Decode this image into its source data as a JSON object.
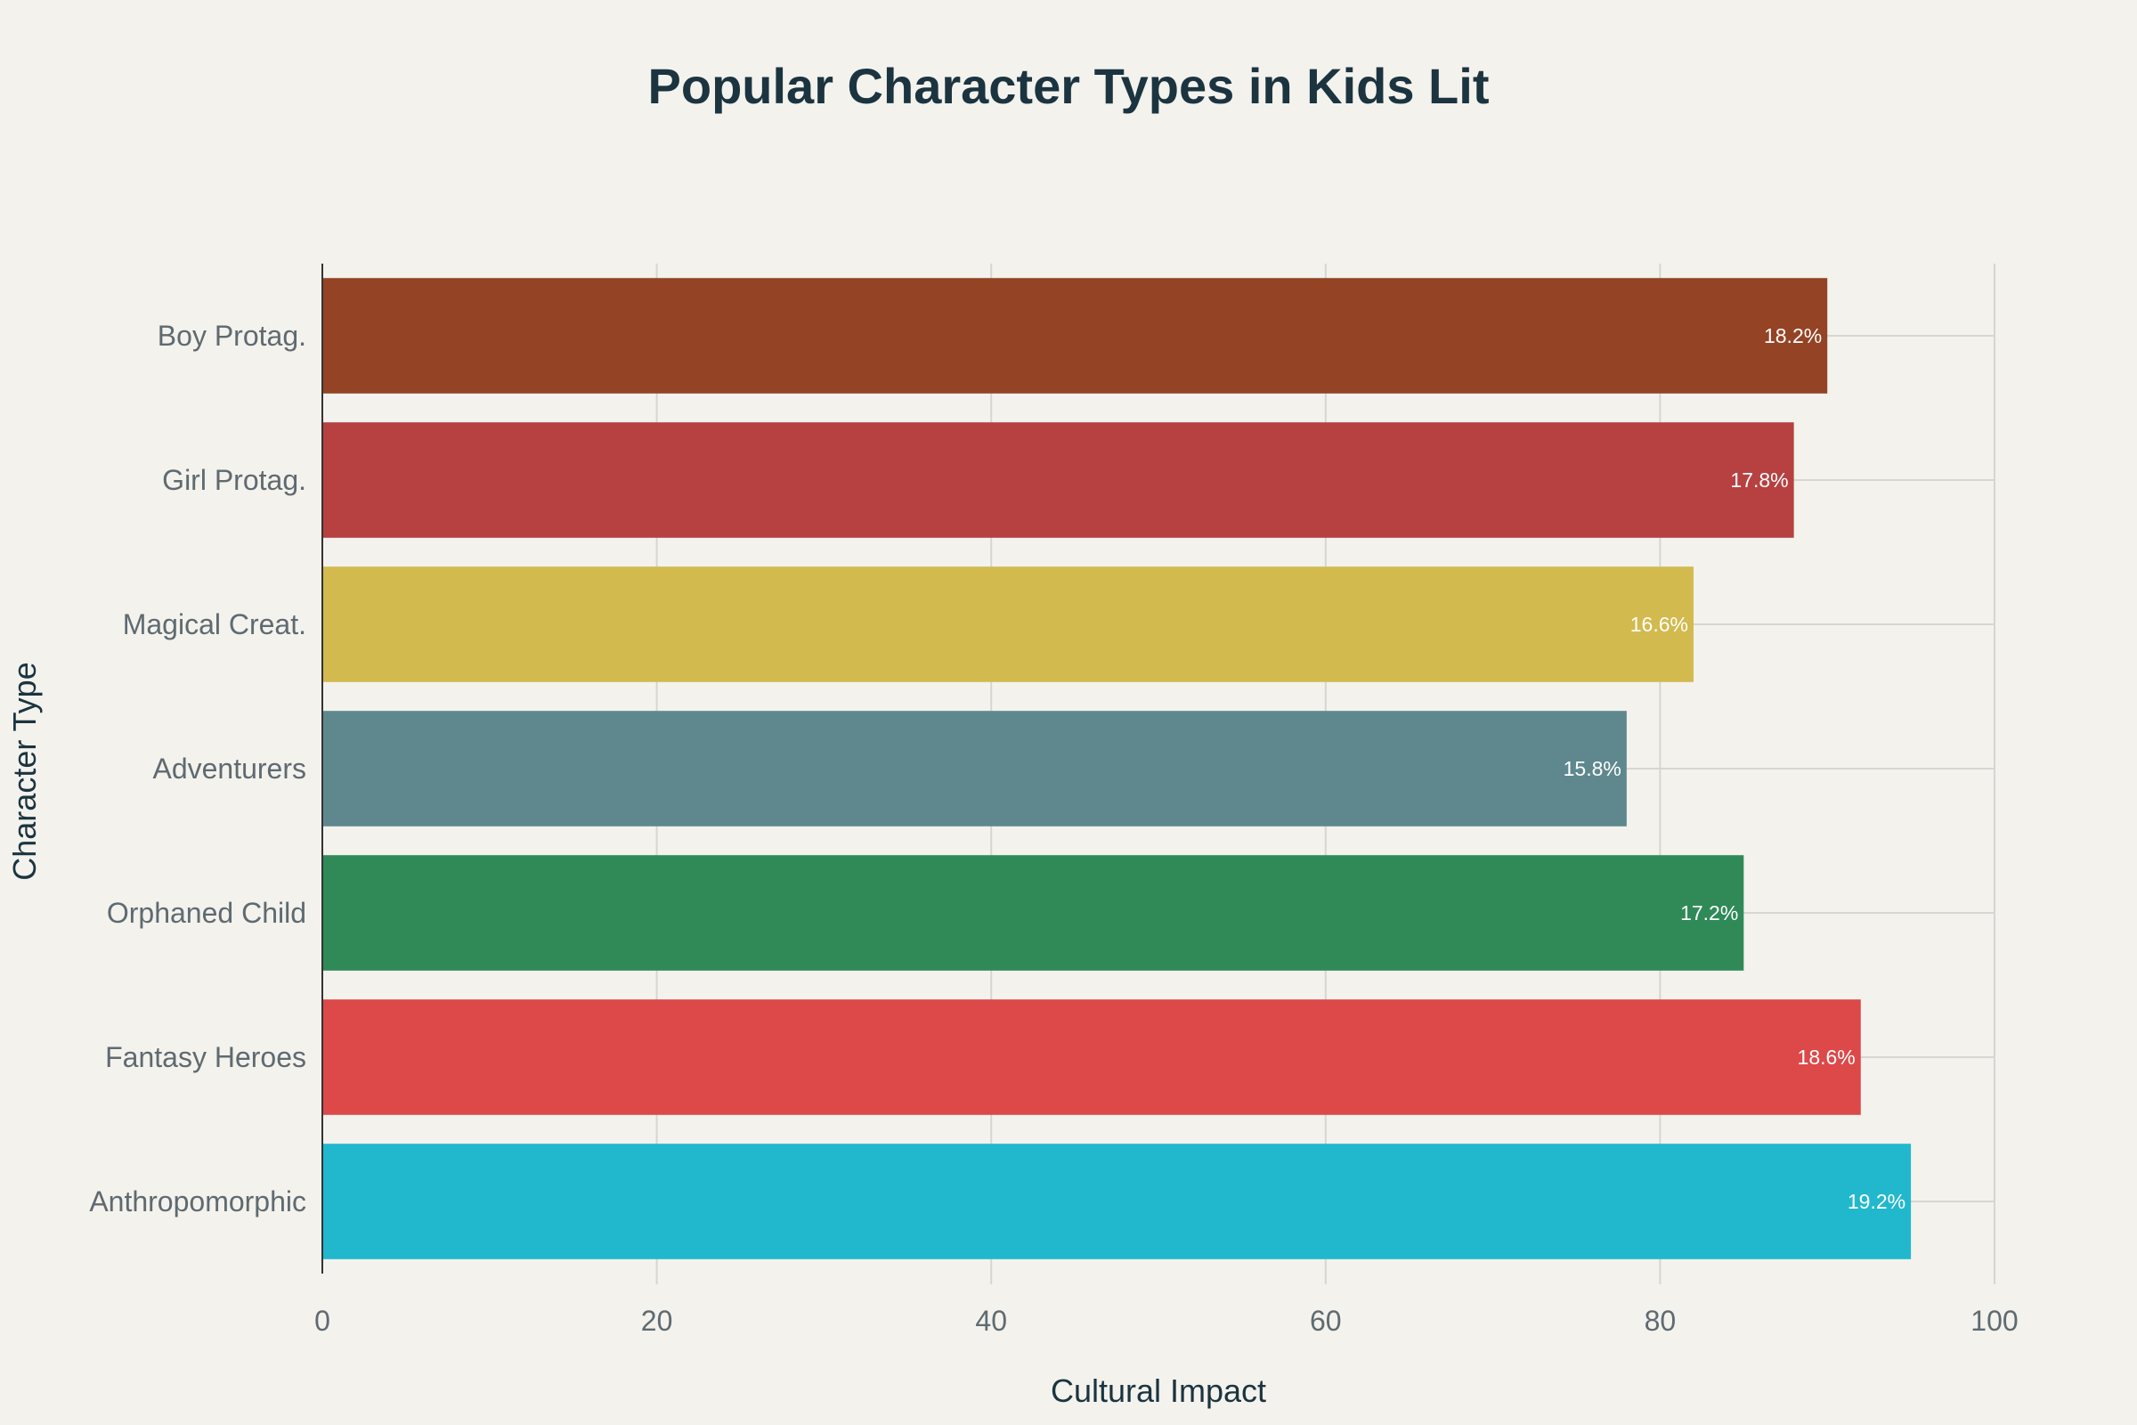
{
  "chart_data": {
    "type": "bar",
    "orientation": "horizontal",
    "title": "Popular Character Types in Kids Lit",
    "xlabel": "Cultural Impact",
    "ylabel": "Character Type",
    "categories": [
      "Boy Protag.",
      "Girl Protag.",
      "Magical Creat.",
      "Adventurers",
      "Orphaned Child",
      "Fantasy Heroes",
      "Anthropomorphic"
    ],
    "values": [
      90,
      88,
      82,
      78,
      85,
      92,
      95
    ],
    "data_labels": [
      "18.2%",
      "17.8%",
      "16.6%",
      "15.8%",
      "17.2%",
      "18.6%",
      "19.2%"
    ],
    "colors": [
      "#944325",
      "#b64140",
      "#d3ba4e",
      "#5e888d",
      "#2f8a58",
      "#dd4849",
      "#21b8cd"
    ],
    "xlim": [
      0,
      100
    ],
    "xticks": [
      0,
      20,
      40,
      60,
      80,
      100
    ],
    "grid": true,
    "legend": "none"
  }
}
